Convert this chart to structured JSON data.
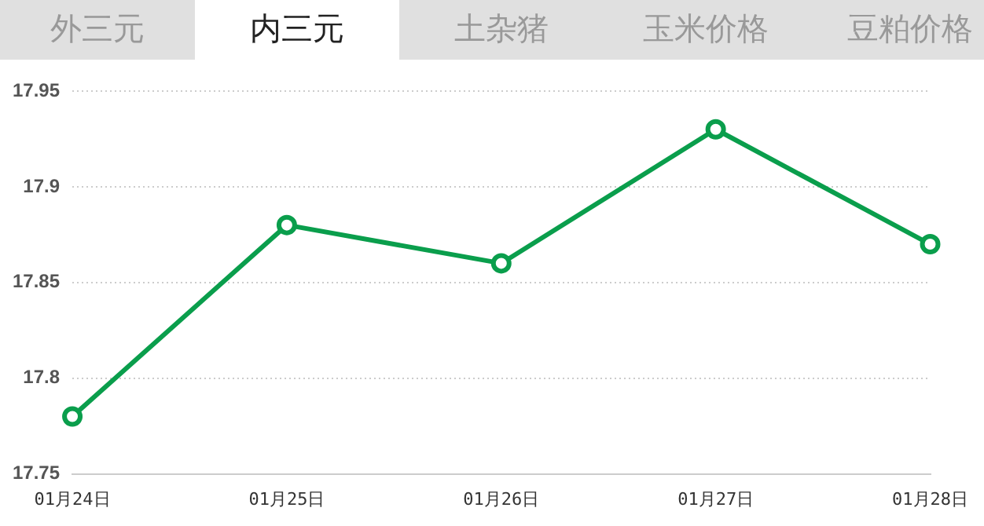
{
  "chart_data": {
    "type": "line",
    "annotations": [
      "外三元",
      "内三元",
      "土杂猪",
      "玉米价格",
      "豆粕价格"
    ],
    "categories": [
      "01月24日",
      "01月25日",
      "01月26日",
      "01月27日",
      "01月28日"
    ],
    "series": [
      {
        "color": "#0a9e4c",
        "values": [
          17.78,
          17.88,
          17.86,
          17.93,
          17.87
        ]
      }
    ],
    "ylim": [
      17.75,
      17.95
    ],
    "yticks": [
      17.75,
      17.8,
      17.85,
      17.9,
      17.95
    ],
    "grid": "y",
    "marker": "circle",
    "line_style": "solid",
    "legend": false
  }
}
